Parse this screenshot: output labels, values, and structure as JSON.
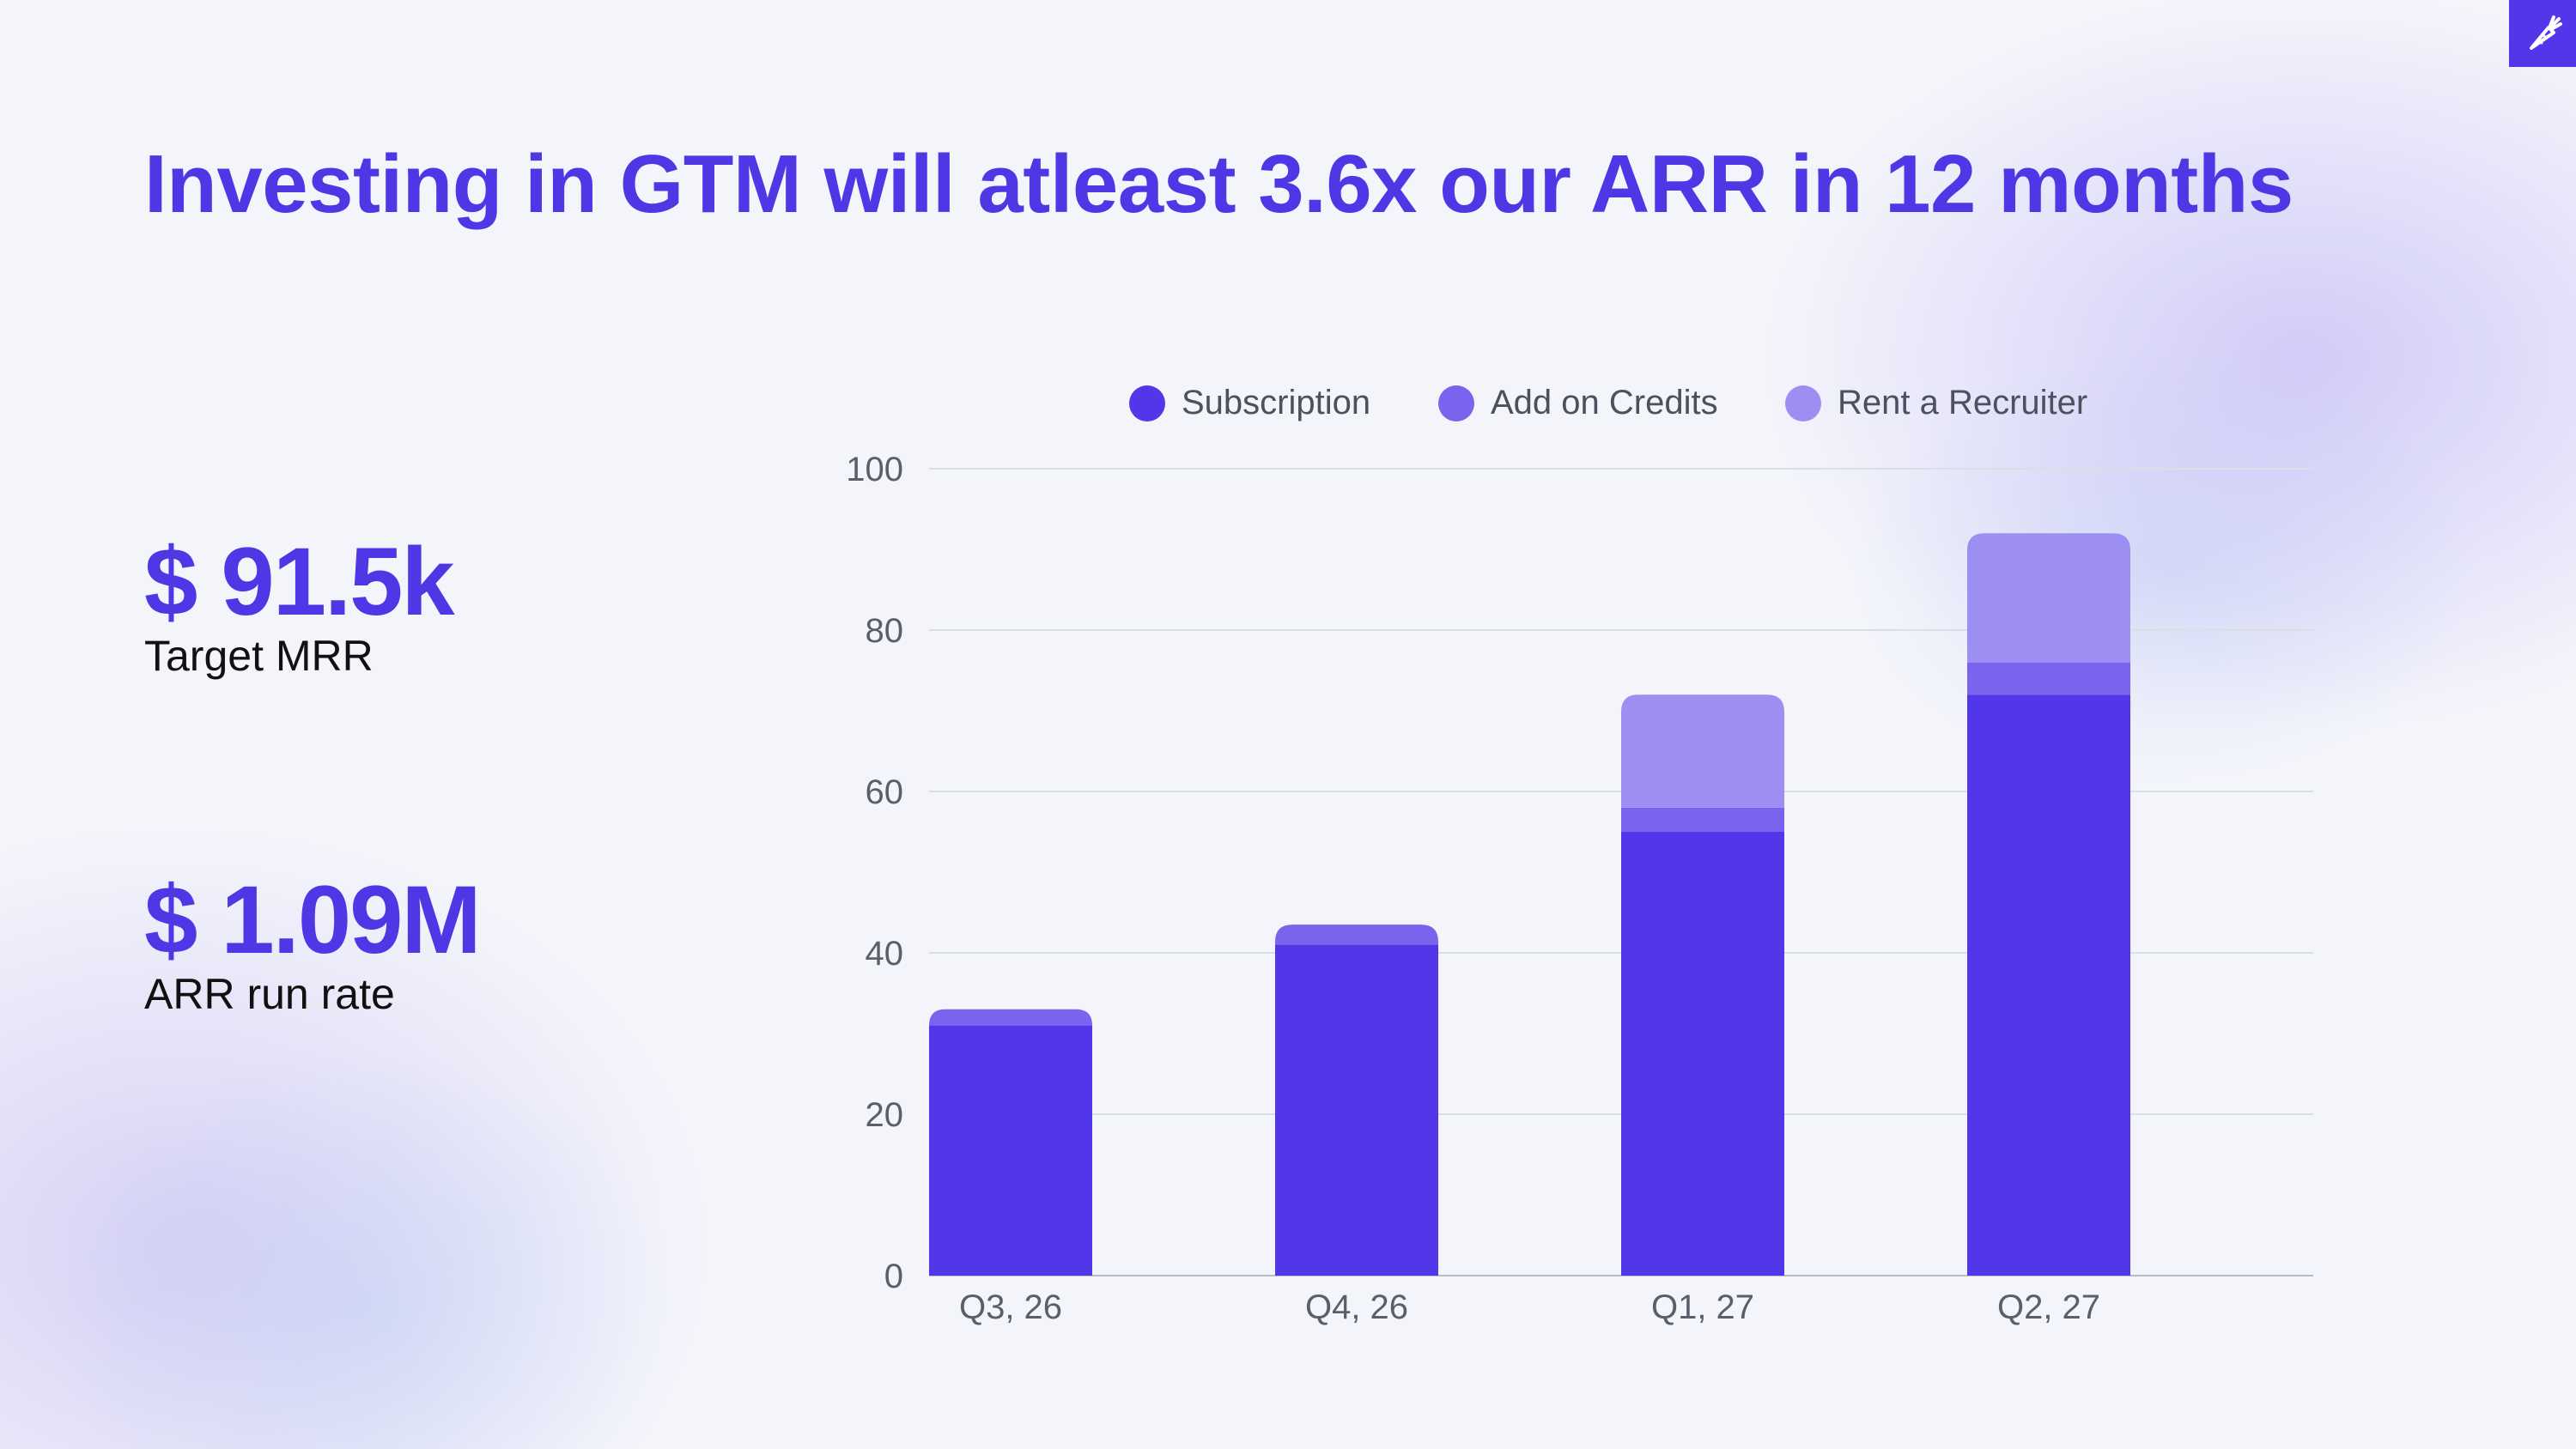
{
  "slide": {
    "title": "Investing in GTM will atleast 3.6x our ARR in 12 months",
    "logo_icon": "carrot-icon",
    "accent_color": "#4f37e6"
  },
  "metrics": [
    {
      "value": "$ 91.5k",
      "label": "Target MRR"
    },
    {
      "value": "$ 1.09M",
      "label": "ARR run rate"
    }
  ],
  "chart_data": {
    "type": "bar",
    "stacked": true,
    "categories": [
      "Q3, 26",
      "Q4, 26",
      "Q1, 27",
      "Q2, 27"
    ],
    "series": [
      {
        "name": "Subscription",
        "values": [
          31,
          41,
          55,
          72
        ],
        "color": "#5236ea"
      },
      {
        "name": "Add on Credits",
        "values": [
          2,
          2.5,
          3,
          4
        ],
        "color": "#7b63ee"
      },
      {
        "name": "Rent a Recruiter",
        "values": [
          0,
          0,
          14,
          16
        ],
        "color": "#9d8ff2"
      }
    ],
    "ylim": [
      0,
      100
    ],
    "yticks": [
      0,
      20,
      40,
      60,
      80,
      100
    ],
    "grid": true,
    "legend_position": "top-center",
    "title": "",
    "xlabel": "",
    "ylabel": ""
  }
}
